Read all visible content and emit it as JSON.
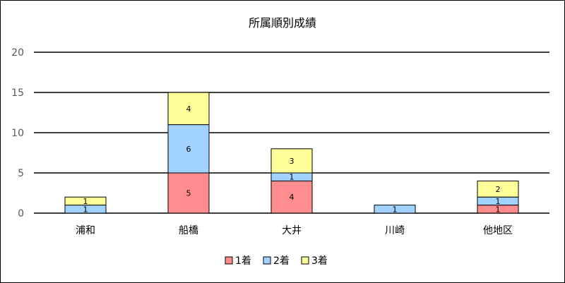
{
  "chart_data": {
    "type": "bar",
    "stacked": true,
    "title": "所属順別成績",
    "xlabel": "",
    "ylabel": "",
    "categories": [
      "浦和",
      "船橋",
      "大井",
      "川崎",
      "他地区"
    ],
    "series": [
      {
        "name": "1着",
        "color": "#ff8d8d",
        "values": [
          0,
          5,
          4,
          0,
          1
        ]
      },
      {
        "name": "2着",
        "color": "#a2d2ff",
        "values": [
          1,
          6,
          1,
          1,
          1
        ]
      },
      {
        "name": "3着",
        "color": "#ffff99",
        "values": [
          1,
          4,
          3,
          0,
          2
        ]
      }
    ],
    "ylim": [
      0,
      20
    ],
    "yticks": [
      0,
      5,
      10,
      15,
      20
    ],
    "grid": true,
    "legend": "bottom-center",
    "data_labels": true
  }
}
